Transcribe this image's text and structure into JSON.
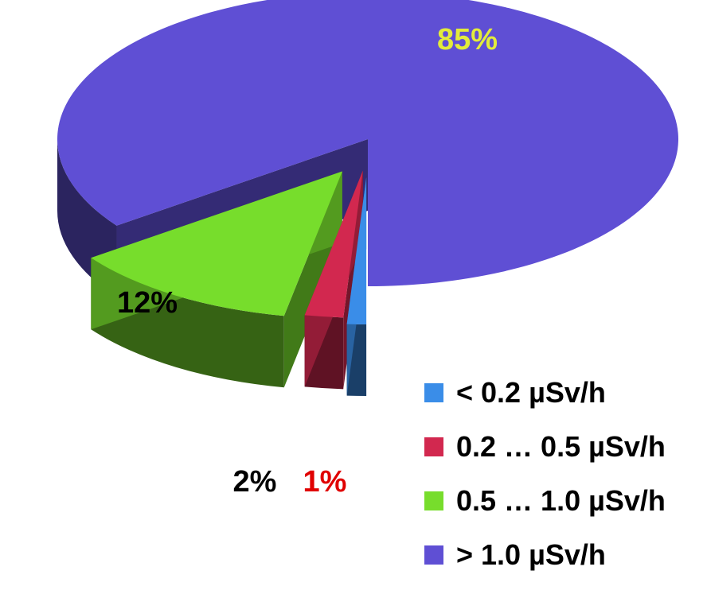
{
  "chart_data": {
    "type": "pie",
    "categories": [
      "< 0.2 µSv/h",
      "0.2 … 0.5 µSv/h",
      "0.5 … 1.0 µSv/h",
      "> 1.0 µSv/h"
    ],
    "values": [
      1,
      2,
      12,
      85
    ],
    "value_labels": [
      "1%",
      "2%",
      "12%",
      "85%"
    ],
    "colors": [
      "#3a8de8",
      "#d2284f",
      "#77dd2c",
      "#5f4fd4"
    ],
    "label_colors": [
      "#e00000",
      "#000000",
      "#000000",
      "#e3ec3a"
    ],
    "exploded": true,
    "three_d": true,
    "legend_position": "bottom-right"
  },
  "legend": {
    "items": [
      {
        "label": "< 0.2 µSv/h",
        "color": "#3a8de8"
      },
      {
        "label": "0.2 … 0.5 µSv/h",
        "color": "#d2284f"
      },
      {
        "label": "0.5 … 1.0 µSv/h",
        "color": "#77dd2c"
      },
      {
        "label": "> 1.0 µSv/h",
        "color": "#5f4fd4"
      }
    ]
  }
}
